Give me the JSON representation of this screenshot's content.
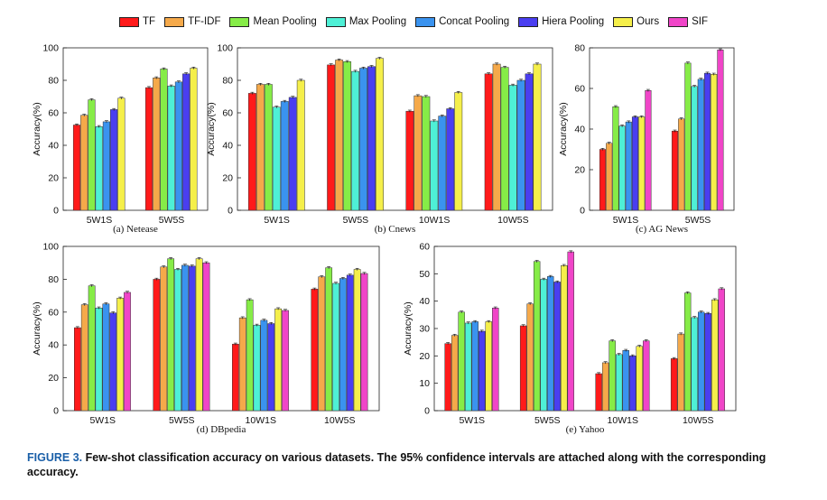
{
  "legend": [
    {
      "name": "TF",
      "color": "#ff1a1a"
    },
    {
      "name": "TF-IDF",
      "color": "#f5a94a"
    },
    {
      "name": "Mean Pooling",
      "color": "#86ec47"
    },
    {
      "name": "Max Pooling",
      "color": "#4ef0d6"
    },
    {
      "name": "Concat Pooling",
      "color": "#3a93ef"
    },
    {
      "name": "Hiera Pooling",
      "color": "#4a3ef0"
    },
    {
      "name": "Ours",
      "color": "#f5ef4a"
    },
    {
      "name": "SIF",
      "color": "#f045c8"
    }
  ],
  "caption": {
    "label": "FIGURE 3.",
    "text": "Few-shot classification accuracy on various datasets. The 95% confidence intervals are attached along with the corresponding accuracy."
  },
  "chart_data": [
    {
      "type": "bar",
      "caption": "(a) Netease",
      "ylabel": "Accuracy(%)",
      "ylim": [
        0,
        100
      ],
      "yticks": [
        0,
        20,
        40,
        60,
        80,
        100
      ],
      "categories": [
        "5W1S",
        "5W5S"
      ],
      "series": [
        {
          "name": "TF",
          "values": [
            52.5,
            75.5
          ]
        },
        {
          "name": "TF-IDF",
          "values": [
            58.5,
            81.5
          ]
        },
        {
          "name": "Mean Pooling",
          "values": [
            68.0,
            87.0
          ]
        },
        {
          "name": "Max Pooling",
          "values": [
            51.5,
            76.5
          ]
        },
        {
          "name": "Concat Pooling",
          "values": [
            54.5,
            79.0
          ]
        },
        {
          "name": "Hiera Pooling",
          "values": [
            62.0,
            84.0
          ]
        },
        {
          "name": "Ours",
          "values": [
            69.0,
            87.5
          ]
        }
      ]
    },
    {
      "type": "bar",
      "caption": "(b) Cnews",
      "ylabel": "Accuracy(%)",
      "ylim": [
        0,
        100
      ],
      "yticks": [
        0,
        20,
        40,
        60,
        80,
        100
      ],
      "categories": [
        "5W1S",
        "5W5S",
        "10W1S",
        "10W5S"
      ],
      "series": [
        {
          "name": "TF",
          "values": [
            72.0,
            89.5,
            61.0,
            84.0
          ]
        },
        {
          "name": "TF-IDF",
          "values": [
            77.5,
            92.5,
            70.5,
            90.0
          ]
        },
        {
          "name": "Mean Pooling",
          "values": [
            77.5,
            91.5,
            70.0,
            88.0
          ]
        },
        {
          "name": "Max Pooling",
          "values": [
            63.5,
            85.5,
            55.0,
            77.0
          ]
        },
        {
          "name": "Concat Pooling",
          "values": [
            67.0,
            87.5,
            58.0,
            80.0
          ]
        },
        {
          "name": "Hiera Pooling",
          "values": [
            69.5,
            88.5,
            62.5,
            84.0
          ]
        },
        {
          "name": "Ours",
          "values": [
            80.0,
            93.5,
            72.5,
            90.0
          ]
        }
      ]
    },
    {
      "type": "bar",
      "caption": "(c) AG News",
      "ylabel": "Accuracy(%)",
      "ylim": [
        0,
        80
      ],
      "yticks": [
        0,
        20,
        40,
        60,
        80
      ],
      "categories": [
        "5W1S",
        "5W5S"
      ],
      "series": [
        {
          "name": "TF",
          "values": [
            30.0,
            39.0
          ]
        },
        {
          "name": "TF-IDF",
          "values": [
            33.0,
            45.0
          ]
        },
        {
          "name": "Mean Pooling",
          "values": [
            51.0,
            72.5
          ]
        },
        {
          "name": "Max Pooling",
          "values": [
            41.5,
            61.0
          ]
        },
        {
          "name": "Concat Pooling",
          "values": [
            43.5,
            64.5
          ]
        },
        {
          "name": "Hiera Pooling",
          "values": [
            46.0,
            67.5
          ]
        },
        {
          "name": "Ours",
          "values": [
            46.0,
            67.0
          ]
        },
        {
          "name": "SIF",
          "values": [
            59.0,
            79.0
          ]
        }
      ]
    },
    {
      "type": "bar",
      "caption": "(d) DBpedia",
      "ylabel": "Accuracy(%)",
      "ylim": [
        0,
        100
      ],
      "yticks": [
        0,
        20,
        40,
        60,
        80,
        100
      ],
      "categories": [
        "5W1S",
        "5W5S",
        "10W1S",
        "10W5S"
      ],
      "series": [
        {
          "name": "TF",
          "values": [
            50.5,
            80.0,
            40.5,
            74.0
          ]
        },
        {
          "name": "TF-IDF",
          "values": [
            64.5,
            87.5,
            56.5,
            81.5
          ]
        },
        {
          "name": "Mean Pooling",
          "values": [
            76.0,
            92.5,
            67.5,
            87.0
          ]
        },
        {
          "name": "Max Pooling",
          "values": [
            62.5,
            86.0,
            52.0,
            77.5
          ]
        },
        {
          "name": "Concat Pooling",
          "values": [
            65.0,
            88.5,
            55.0,
            80.5
          ]
        },
        {
          "name": "Hiera Pooling",
          "values": [
            59.5,
            88.0,
            53.0,
            82.5
          ]
        },
        {
          "name": "Ours",
          "values": [
            68.5,
            92.5,
            62.0,
            86.0
          ]
        },
        {
          "name": "SIF",
          "values": [
            72.0,
            90.0,
            61.0,
            83.5
          ]
        }
      ]
    },
    {
      "type": "bar",
      "caption": "(e) Yahoo",
      "ylabel": "Accuracy(%)",
      "ylim": [
        0,
        60
      ],
      "yticks": [
        0,
        10,
        20,
        30,
        40,
        50,
        60
      ],
      "categories": [
        "5W1S",
        "5W5S",
        "10W1S",
        "10W5S"
      ],
      "series": [
        {
          "name": "TF",
          "values": [
            24.5,
            31.0,
            13.5,
            19.0
          ]
        },
        {
          "name": "TF-IDF",
          "values": [
            27.5,
            39.0,
            17.5,
            28.0
          ]
        },
        {
          "name": "Mean Pooling",
          "values": [
            36.0,
            54.5,
            25.5,
            43.0
          ]
        },
        {
          "name": "Max Pooling",
          "values": [
            32.0,
            48.0,
            20.5,
            34.0
          ]
        },
        {
          "name": "Concat Pooling",
          "values": [
            32.5,
            49.0,
            22.0,
            36.0
          ]
        },
        {
          "name": "Hiera Pooling",
          "values": [
            29.0,
            47.0,
            20.0,
            35.5
          ]
        },
        {
          "name": "Ours",
          "values": [
            32.5,
            53.0,
            23.5,
            40.5
          ]
        },
        {
          "name": "SIF",
          "values": [
            37.5,
            58.0,
            25.5,
            44.5
          ]
        }
      ]
    }
  ]
}
